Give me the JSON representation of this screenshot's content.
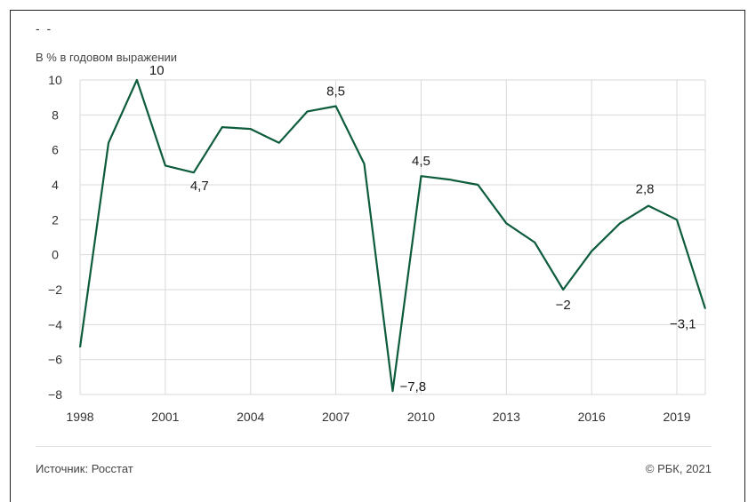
{
  "header": {
    "dashes": "- -",
    "units": "В % в годовом выражении"
  },
  "footer": {
    "source": "Источник: Росстат",
    "copyright": "© РБК, 2021"
  },
  "chart_data": {
    "type": "line",
    "title": "",
    "ylabel": "В % в годовом выражении",
    "xlabel": "",
    "x": [
      1998,
      1999,
      2000,
      2001,
      2002,
      2003,
      2004,
      2005,
      2006,
      2007,
      2008,
      2009,
      2010,
      2011,
      2012,
      2013,
      2014,
      2015,
      2016,
      2017,
      2018,
      2019,
      2020
    ],
    "series": [
      {
        "values": [
          -5.3,
          6.4,
          10,
          5.1,
          4.7,
          7.3,
          7.2,
          6.4,
          8.2,
          8.5,
          5.2,
          -7.8,
          4.5,
          4.3,
          4.0,
          1.8,
          0.7,
          -2,
          0.2,
          1.8,
          2.8,
          2.0,
          -3.1
        ],
        "color": "#0d5c3c"
      }
    ],
    "xticks": [
      1998,
      2001,
      2004,
      2007,
      2010,
      2013,
      2016,
      2019
    ],
    "xtick_labels": [
      "1998",
      "2001",
      "2004",
      "2007",
      "2010",
      "2013",
      "2016",
      "2019"
    ],
    "yticks": [
      -8,
      -6,
      -4,
      -2,
      0,
      2,
      4,
      6,
      8,
      10
    ],
    "ytick_labels": [
      "−8",
      "−6",
      "−4",
      "−2",
      "0",
      "2",
      "4",
      "6",
      "8",
      "10"
    ],
    "xlim": [
      1998,
      2020
    ],
    "ylim": [
      -8,
      10
    ],
    "grid": true,
    "annotations": [
      {
        "x": 2000,
        "y": 10,
        "text": "10"
      },
      {
        "x": 2002,
        "y": 4.7,
        "text": "4,7"
      },
      {
        "x": 2007,
        "y": 8.5,
        "text": "8,5"
      },
      {
        "x": 2009,
        "y": -7.8,
        "text": "−7,8"
      },
      {
        "x": 2010,
        "y": 4.5,
        "text": "4,5"
      },
      {
        "x": 2015,
        "y": -2,
        "text": "−2"
      },
      {
        "x": 2018,
        "y": 2.8,
        "text": "2,8"
      },
      {
        "x": 2020,
        "y": -3.1,
        "text": "−3,1"
      }
    ]
  }
}
